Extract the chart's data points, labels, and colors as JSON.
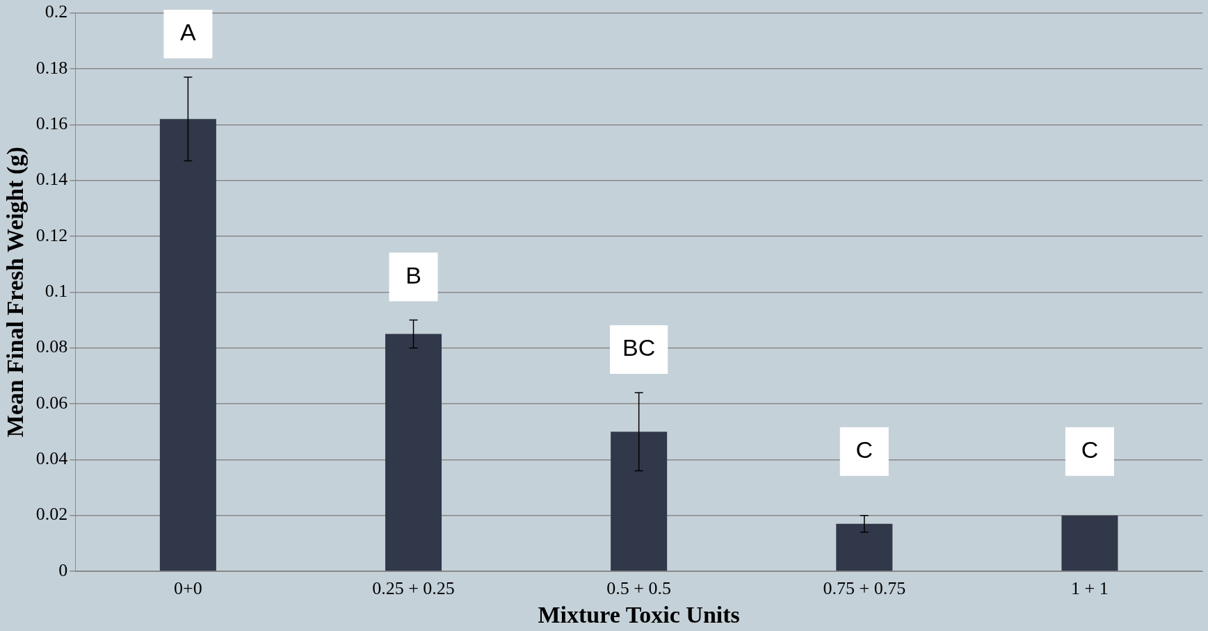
{
  "chart_data": {
    "type": "bar",
    "xlabel": "Mixture Toxic Units",
    "ylabel": "Mean Final Fresh Weight (g)",
    "categories": [
      "0+0",
      "0.25 + 0.25",
      "0.5 + 0.5",
      "0.75 + 0.75",
      "1 + 1"
    ],
    "values": [
      0.162,
      0.085,
      0.05,
      0.017,
      0.02
    ],
    "errors": [
      0.015,
      0.005,
      0.014,
      0.003,
      null
    ],
    "color": "#31384a",
    "ylim": [
      0,
      0.2
    ],
    "yticks": [
      0,
      0.02,
      0.04,
      0.06,
      0.08,
      0.1,
      0.12,
      0.14,
      0.16,
      0.18,
      0.2
    ],
    "grid": "y",
    "legend": false,
    "annotations": [
      "A",
      "B",
      "BC",
      "C",
      "C"
    ]
  }
}
